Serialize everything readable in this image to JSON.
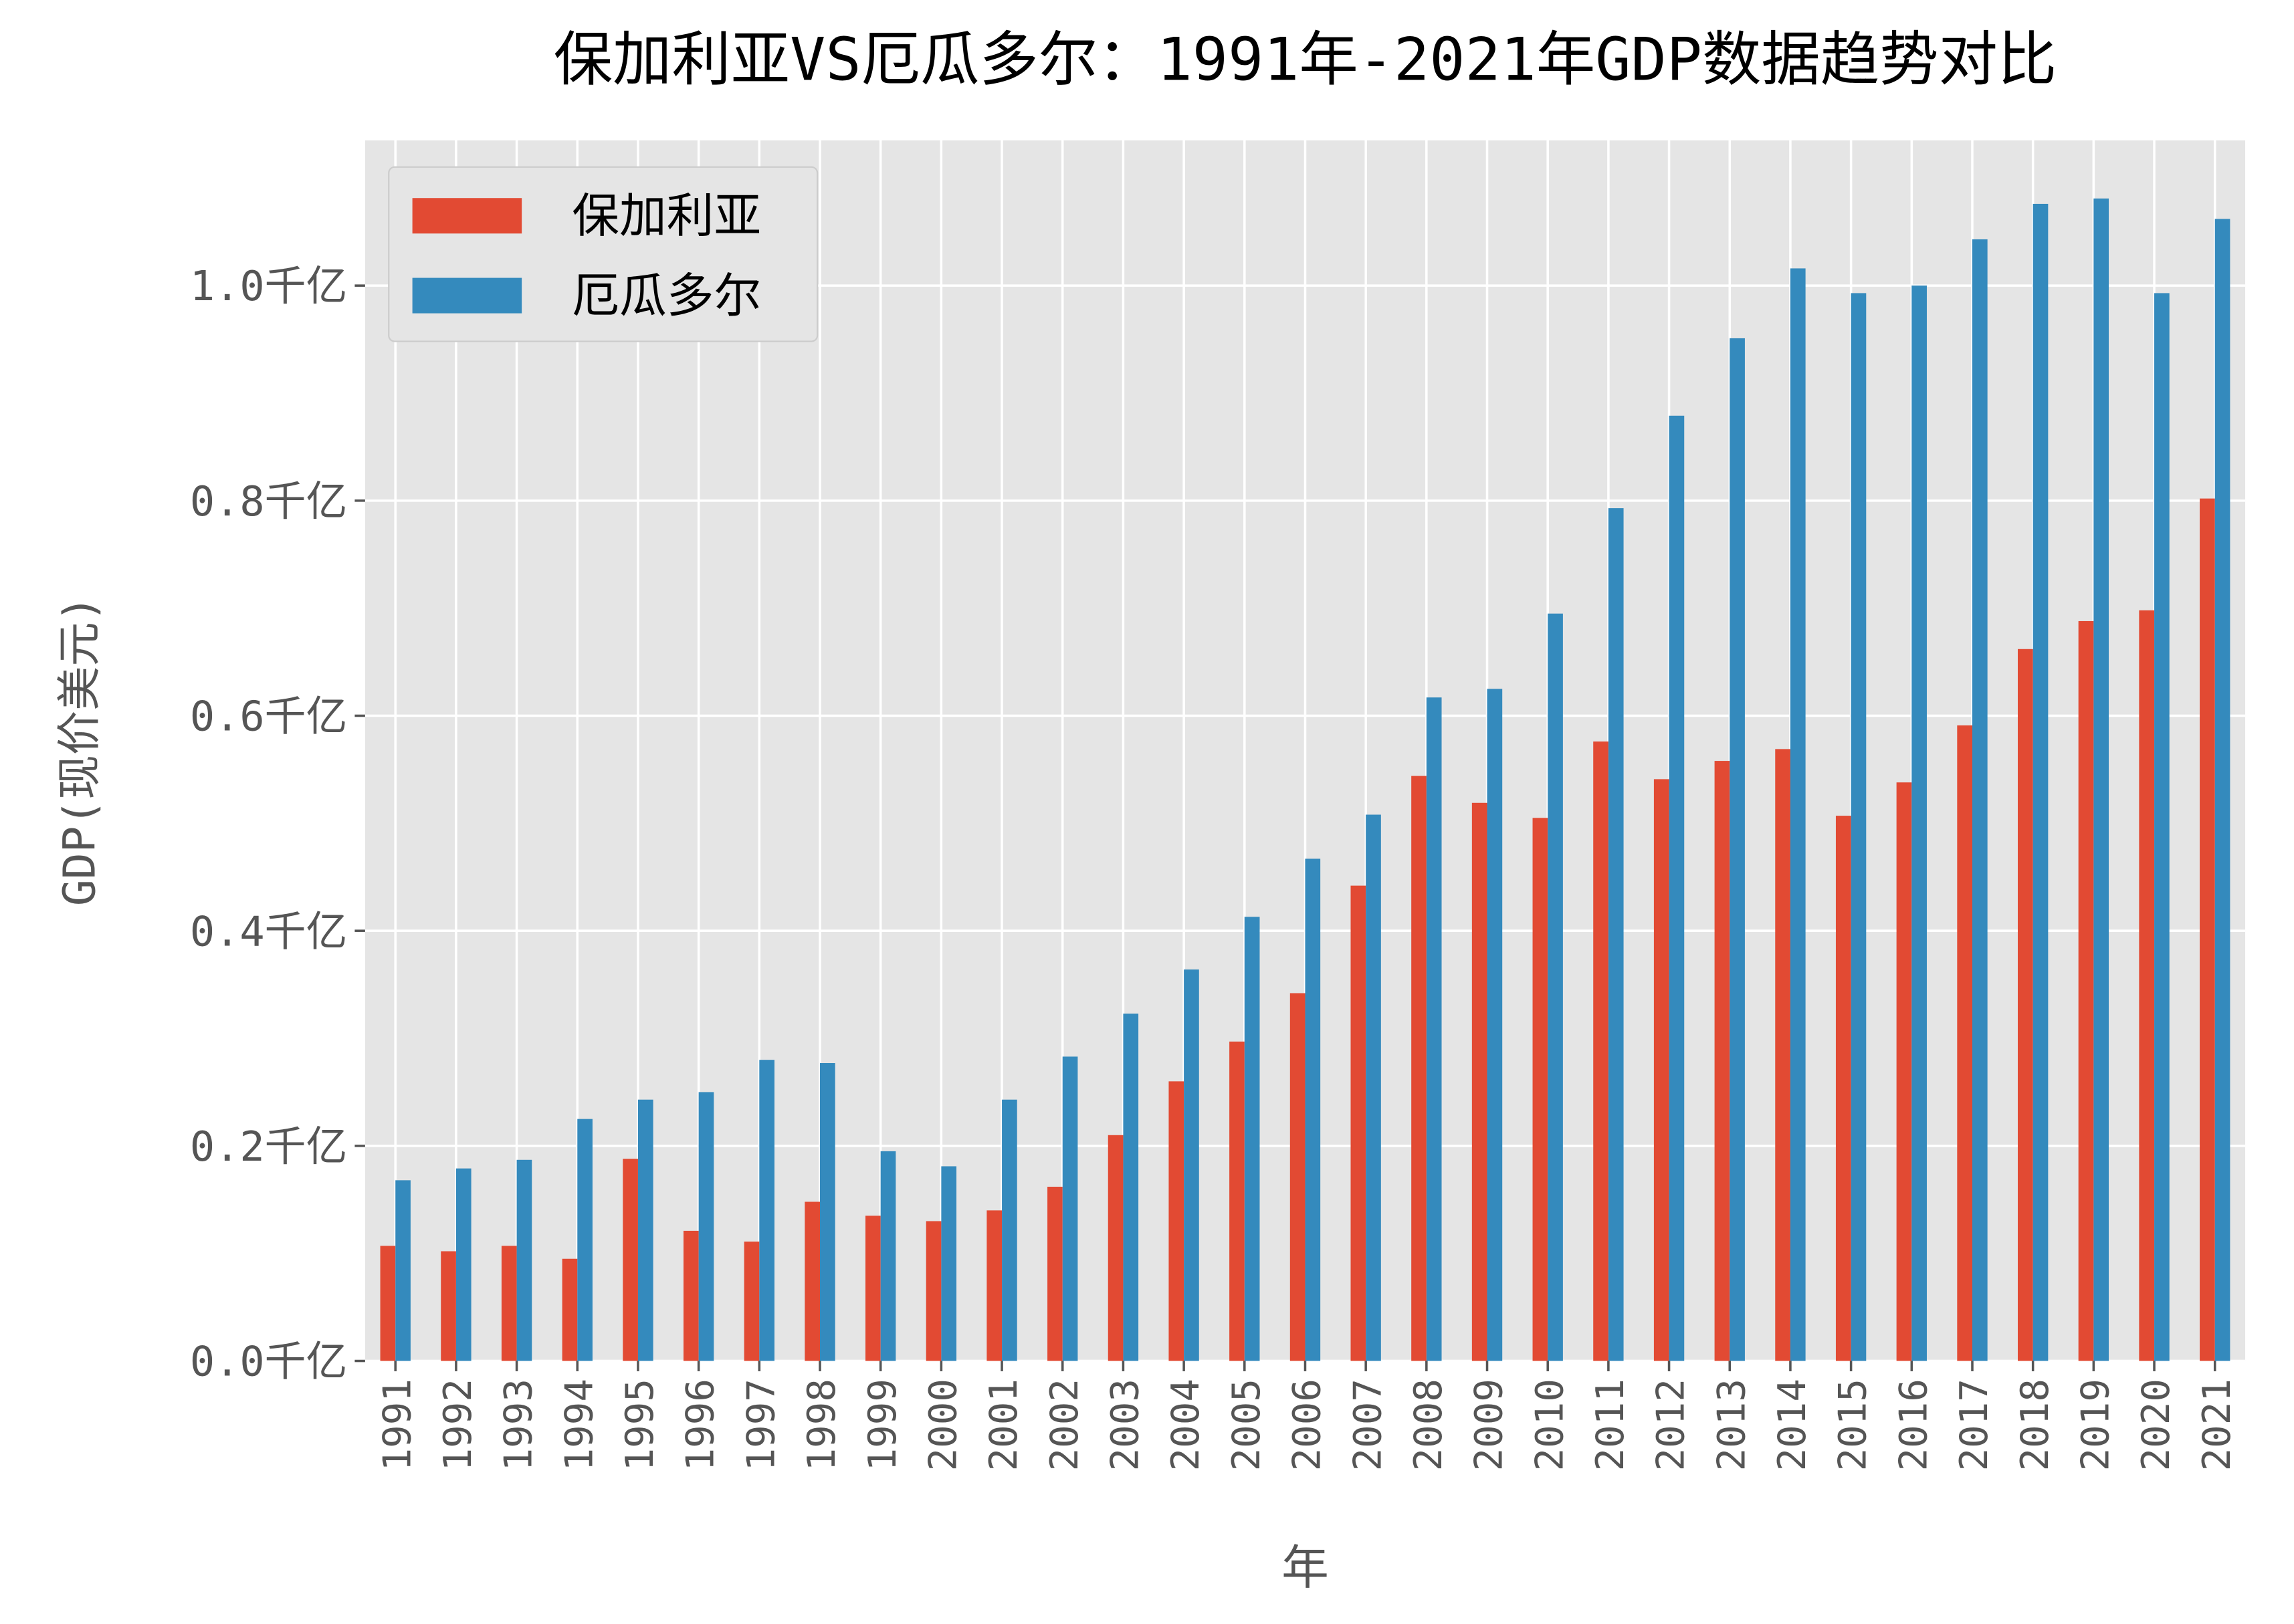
{
  "chart_data": {
    "type": "bar",
    "title": "保加利亚VS厄瓜多尔：1991年-2021年GDP数据趋势对比",
    "x_label": "年",
    "y_label": "GDP(现价美元)",
    "categories": [
      "1991",
      "1992",
      "1993",
      "1994",
      "1995",
      "1996",
      "1997",
      "1998",
      "1999",
      "2000",
      "2001",
      "2002",
      "2003",
      "2004",
      "2005",
      "2006",
      "2007",
      "2008",
      "2009",
      "2010",
      "2011",
      "2012",
      "2013",
      "2014",
      "2015",
      "2016",
      "2017",
      "2018",
      "2019",
      "2020",
      "2021"
    ],
    "series": [
      {
        "name": "保加利亚",
        "color": "#e24a33",
        "values": [
          0.107,
          0.102,
          0.107,
          0.095,
          0.188,
          0.121,
          0.111,
          0.148,
          0.135,
          0.13,
          0.14,
          0.162,
          0.21,
          0.26,
          0.297,
          0.342,
          0.442,
          0.544,
          0.519,
          0.505,
          0.576,
          0.541,
          0.558,
          0.569,
          0.507,
          0.538,
          0.591,
          0.662,
          0.688,
          0.698,
          0.802
        ]
      },
      {
        "name": "厄瓜多尔",
        "color": "#348abd",
        "values": [
          0.168,
          0.179,
          0.187,
          0.225,
          0.243,
          0.25,
          0.28,
          0.277,
          0.195,
          0.181,
          0.243,
          0.283,
          0.323,
          0.364,
          0.413,
          0.467,
          0.508,
          0.617,
          0.625,
          0.695,
          0.793,
          0.879,
          0.951,
          1.016,
          0.993,
          1.0,
          1.043,
          1.076,
          1.081,
          0.993,
          1.062
        ]
      }
    ],
    "ylim": [
      0,
      1.135
    ],
    "yticks": [
      {
        "value": 0,
        "label": "0.0千亿"
      },
      {
        "value": 0.2,
        "label": "0.2千亿"
      },
      {
        "value": 0.4,
        "label": "0.4千亿"
      },
      {
        "value": 0.6,
        "label": "0.6千亿"
      },
      {
        "value": 0.8,
        "label": "0.8千亿"
      },
      {
        "value": 1.0,
        "label": "1.0千亿"
      }
    ],
    "grid": true,
    "legend": "upper-left"
  }
}
